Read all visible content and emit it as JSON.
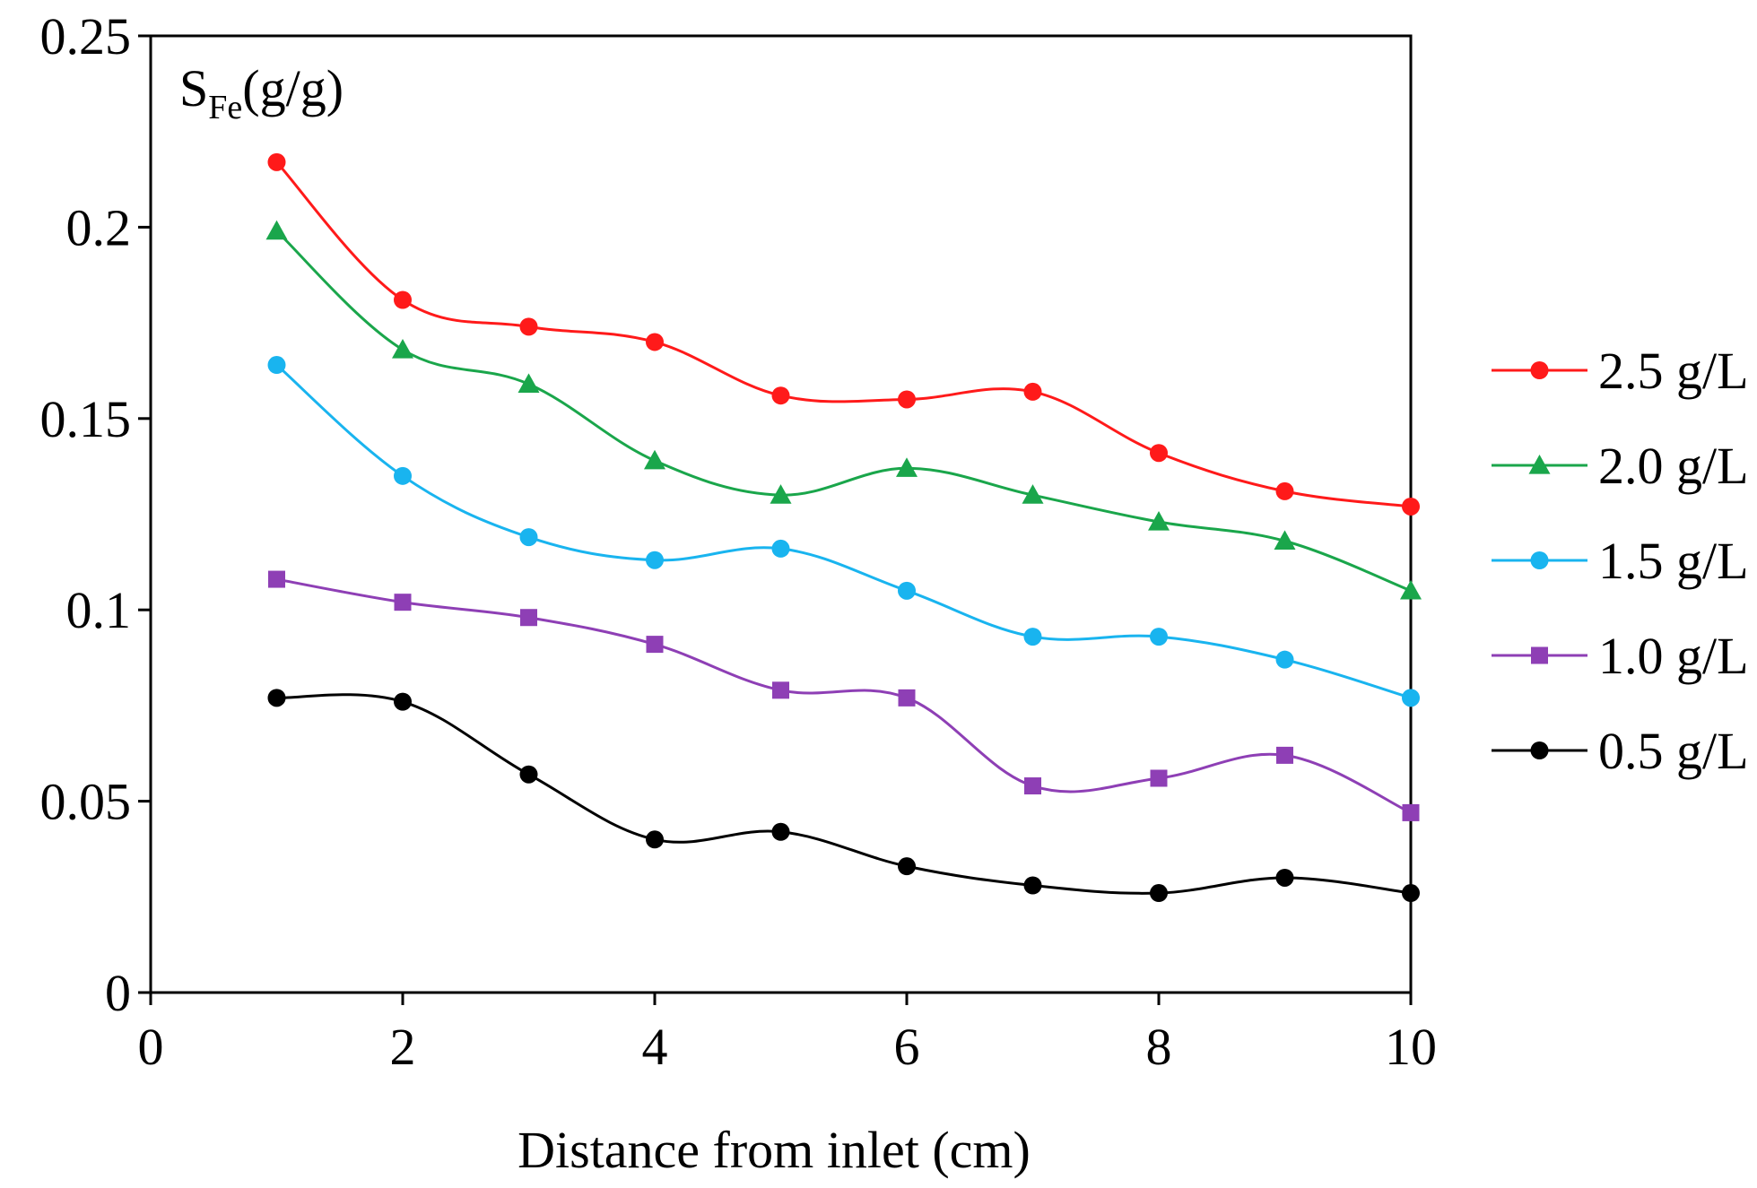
{
  "chart_data": {
    "type": "line",
    "title": "",
    "xlabel": "Distance from inlet (cm)",
    "ylabel": {
      "main": "S",
      "subscript": "Fe",
      "unit": "(g/g)"
    },
    "xlim": [
      0,
      10
    ],
    "ylim": [
      0,
      0.25
    ],
    "xticks": [
      0,
      2,
      4,
      6,
      8,
      10
    ],
    "xtick_labels": [
      "0",
      "2",
      "4",
      "6",
      "8",
      "10"
    ],
    "yticks": [
      0,
      0.05,
      0.1,
      0.15,
      0.2,
      0.25
    ],
    "ytick_labels": [
      "0",
      "0.05",
      "0.1",
      "0.15",
      "0.2",
      "0.25"
    ],
    "grid": false,
    "legend_position": "right",
    "x": [
      1,
      2,
      3,
      4,
      5,
      6,
      7,
      8,
      9,
      10
    ],
    "series": [
      {
        "name": "2.5 g/L",
        "color": "#ff1a1a",
        "marker": "circle",
        "values": [
          0.217,
          0.181,
          0.174,
          0.17,
          0.156,
          0.155,
          0.157,
          0.141,
          0.131,
          0.127
        ]
      },
      {
        "name": "2.0 g/L",
        "color": "#1aa64b",
        "marker": "triangle",
        "values": [
          0.199,
          0.168,
          0.159,
          0.139,
          0.13,
          0.137,
          0.13,
          0.123,
          0.118,
          0.105
        ]
      },
      {
        "name": "1.5 g/L",
        "color": "#19b4ef",
        "marker": "circle",
        "values": [
          0.164,
          0.135,
          0.119,
          0.113,
          0.116,
          0.105,
          0.093,
          0.093,
          0.087,
          0.077
        ]
      },
      {
        "name": "1.0 g/L",
        "color": "#8e3fb5",
        "marker": "square",
        "values": [
          0.108,
          0.102,
          0.098,
          0.091,
          0.079,
          0.077,
          0.054,
          0.056,
          0.062,
          0.047
        ]
      },
      {
        "name": "0.5 g/L",
        "color": "#000000",
        "marker": "circle",
        "values": [
          0.077,
          0.076,
          0.057,
          0.04,
          0.042,
          0.033,
          0.028,
          0.026,
          0.03,
          0.026
        ]
      }
    ]
  }
}
